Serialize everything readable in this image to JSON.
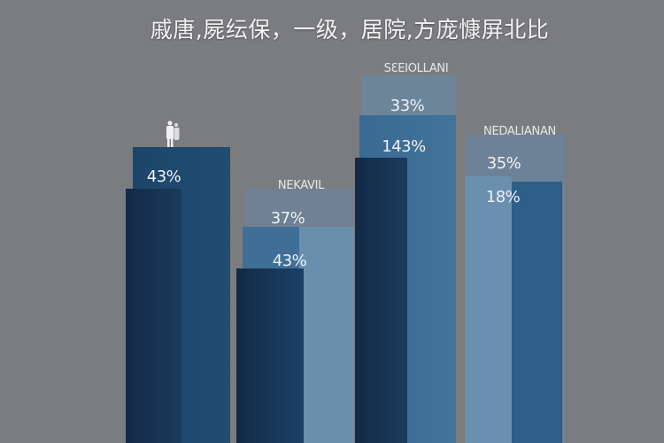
{
  "chart_data": {
    "type": "bar",
    "title": "戚唐,屍纭保，一级，居院,方庞慷屏北比",
    "categories": [
      "",
      "NEKAVIL",
      "SƐEIOLLANI",
      "NEDALIANAN"
    ],
    "data_labels": [
      [
        "43%"
      ],
      [
        "37%",
        "43%"
      ],
      [
        "33%",
        "143%"
      ],
      [
        "35%",
        "18%"
      ]
    ],
    "colors": {
      "background": "#7b7c7f",
      "dark_navy": "#15304f",
      "navy": "#1e4a6e",
      "steel_blue": "#3f719a",
      "light_blue": "#6a8fad",
      "faint_back": "#6d8296"
    },
    "icons": [
      "person-icon"
    ]
  }
}
